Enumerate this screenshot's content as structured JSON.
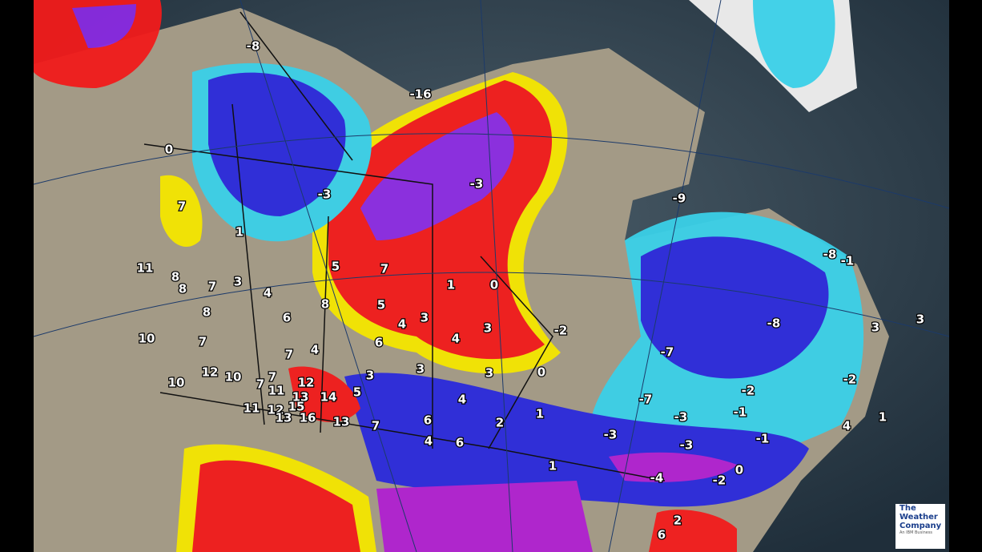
{
  "map": {
    "labels": [
      -8,
      -16,
      0,
      -3,
      -3,
      -9,
      7,
      1,
      11,
      8,
      8,
      7,
      3,
      4,
      5,
      7,
      1,
      0,
      -8,
      -1,
      8,
      5,
      6,
      8,
      4,
      3,
      3,
      -2,
      -8,
      3,
      3,
      10,
      7,
      6,
      4,
      7,
      4,
      -7,
      12,
      10,
      7,
      7,
      12,
      3,
      3,
      3,
      0,
      -2,
      10,
      11,
      13,
      14,
      5,
      4,
      -2,
      15,
      11,
      12,
      -7,
      1,
      16,
      13,
      13,
      7,
      6,
      2,
      1,
      -3,
      -1,
      4,
      -3,
      -3,
      -1,
      4,
      6,
      1,
      0,
      -4,
      -2,
      2,
      6
    ]
  },
  "logo": {
    "line1": "The",
    "line2": "Weather",
    "line3": "Company",
    "tagline": "An IBM Business"
  }
}
